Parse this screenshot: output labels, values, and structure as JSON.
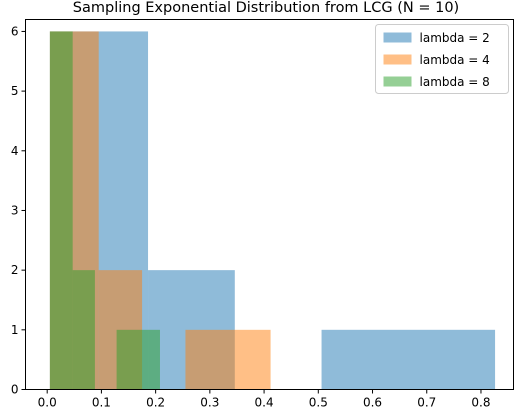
{
  "chart_data": {
    "type": "histogram",
    "title": "Sampling Exponential Distribution from LCG (N = 10)",
    "xlabel": "",
    "ylabel": "",
    "xlim": [
      -0.04,
      0.86
    ],
    "ylim": [
      0,
      6.2
    ],
    "xticks": [
      "0.0",
      "0.1",
      "0.2",
      "0.3",
      "0.4",
      "0.5",
      "0.6",
      "0.7",
      "0.8"
    ],
    "yticks": [
      "0",
      "1",
      "2",
      "3",
      "4",
      "5",
      "6"
    ],
    "grid": false,
    "legend_position": "top-right",
    "series": [
      {
        "name": "lambda = 2",
        "color": "#1f77b4",
        "alpha": 0.5,
        "bin_edges": [
          0.005,
          0.0954,
          0.1858,
          0.3462,
          0.5066,
          0.667,
          0.8274
        ],
        "bins": [
          {
            "x0": 0.005,
            "x1": 0.186,
            "count": 6
          },
          {
            "x0": 0.186,
            "x1": 0.346,
            "count": 2
          },
          {
            "x0": 0.506,
            "x1": 0.826,
            "count": 1
          }
        ]
      },
      {
        "name": "lambda = 4",
        "color": "#ff7f0e",
        "alpha": 0.5,
        "bins": [
          {
            "x0": 0.005,
            "x1": 0.095,
            "count": 6
          },
          {
            "x0": 0.095,
            "x1": 0.175,
            "count": 2
          },
          {
            "x0": 0.255,
            "x1": 0.412,
            "count": 1
          }
        ]
      },
      {
        "name": "lambda = 8",
        "color": "#2ca02c",
        "alpha": 0.5,
        "bins": [
          {
            "x0": 0.005,
            "x1": 0.047,
            "count": 6
          },
          {
            "x0": 0.047,
            "x1": 0.088,
            "count": 2
          },
          {
            "x0": 0.128,
            "x1": 0.208,
            "count": 1
          }
        ]
      }
    ]
  }
}
